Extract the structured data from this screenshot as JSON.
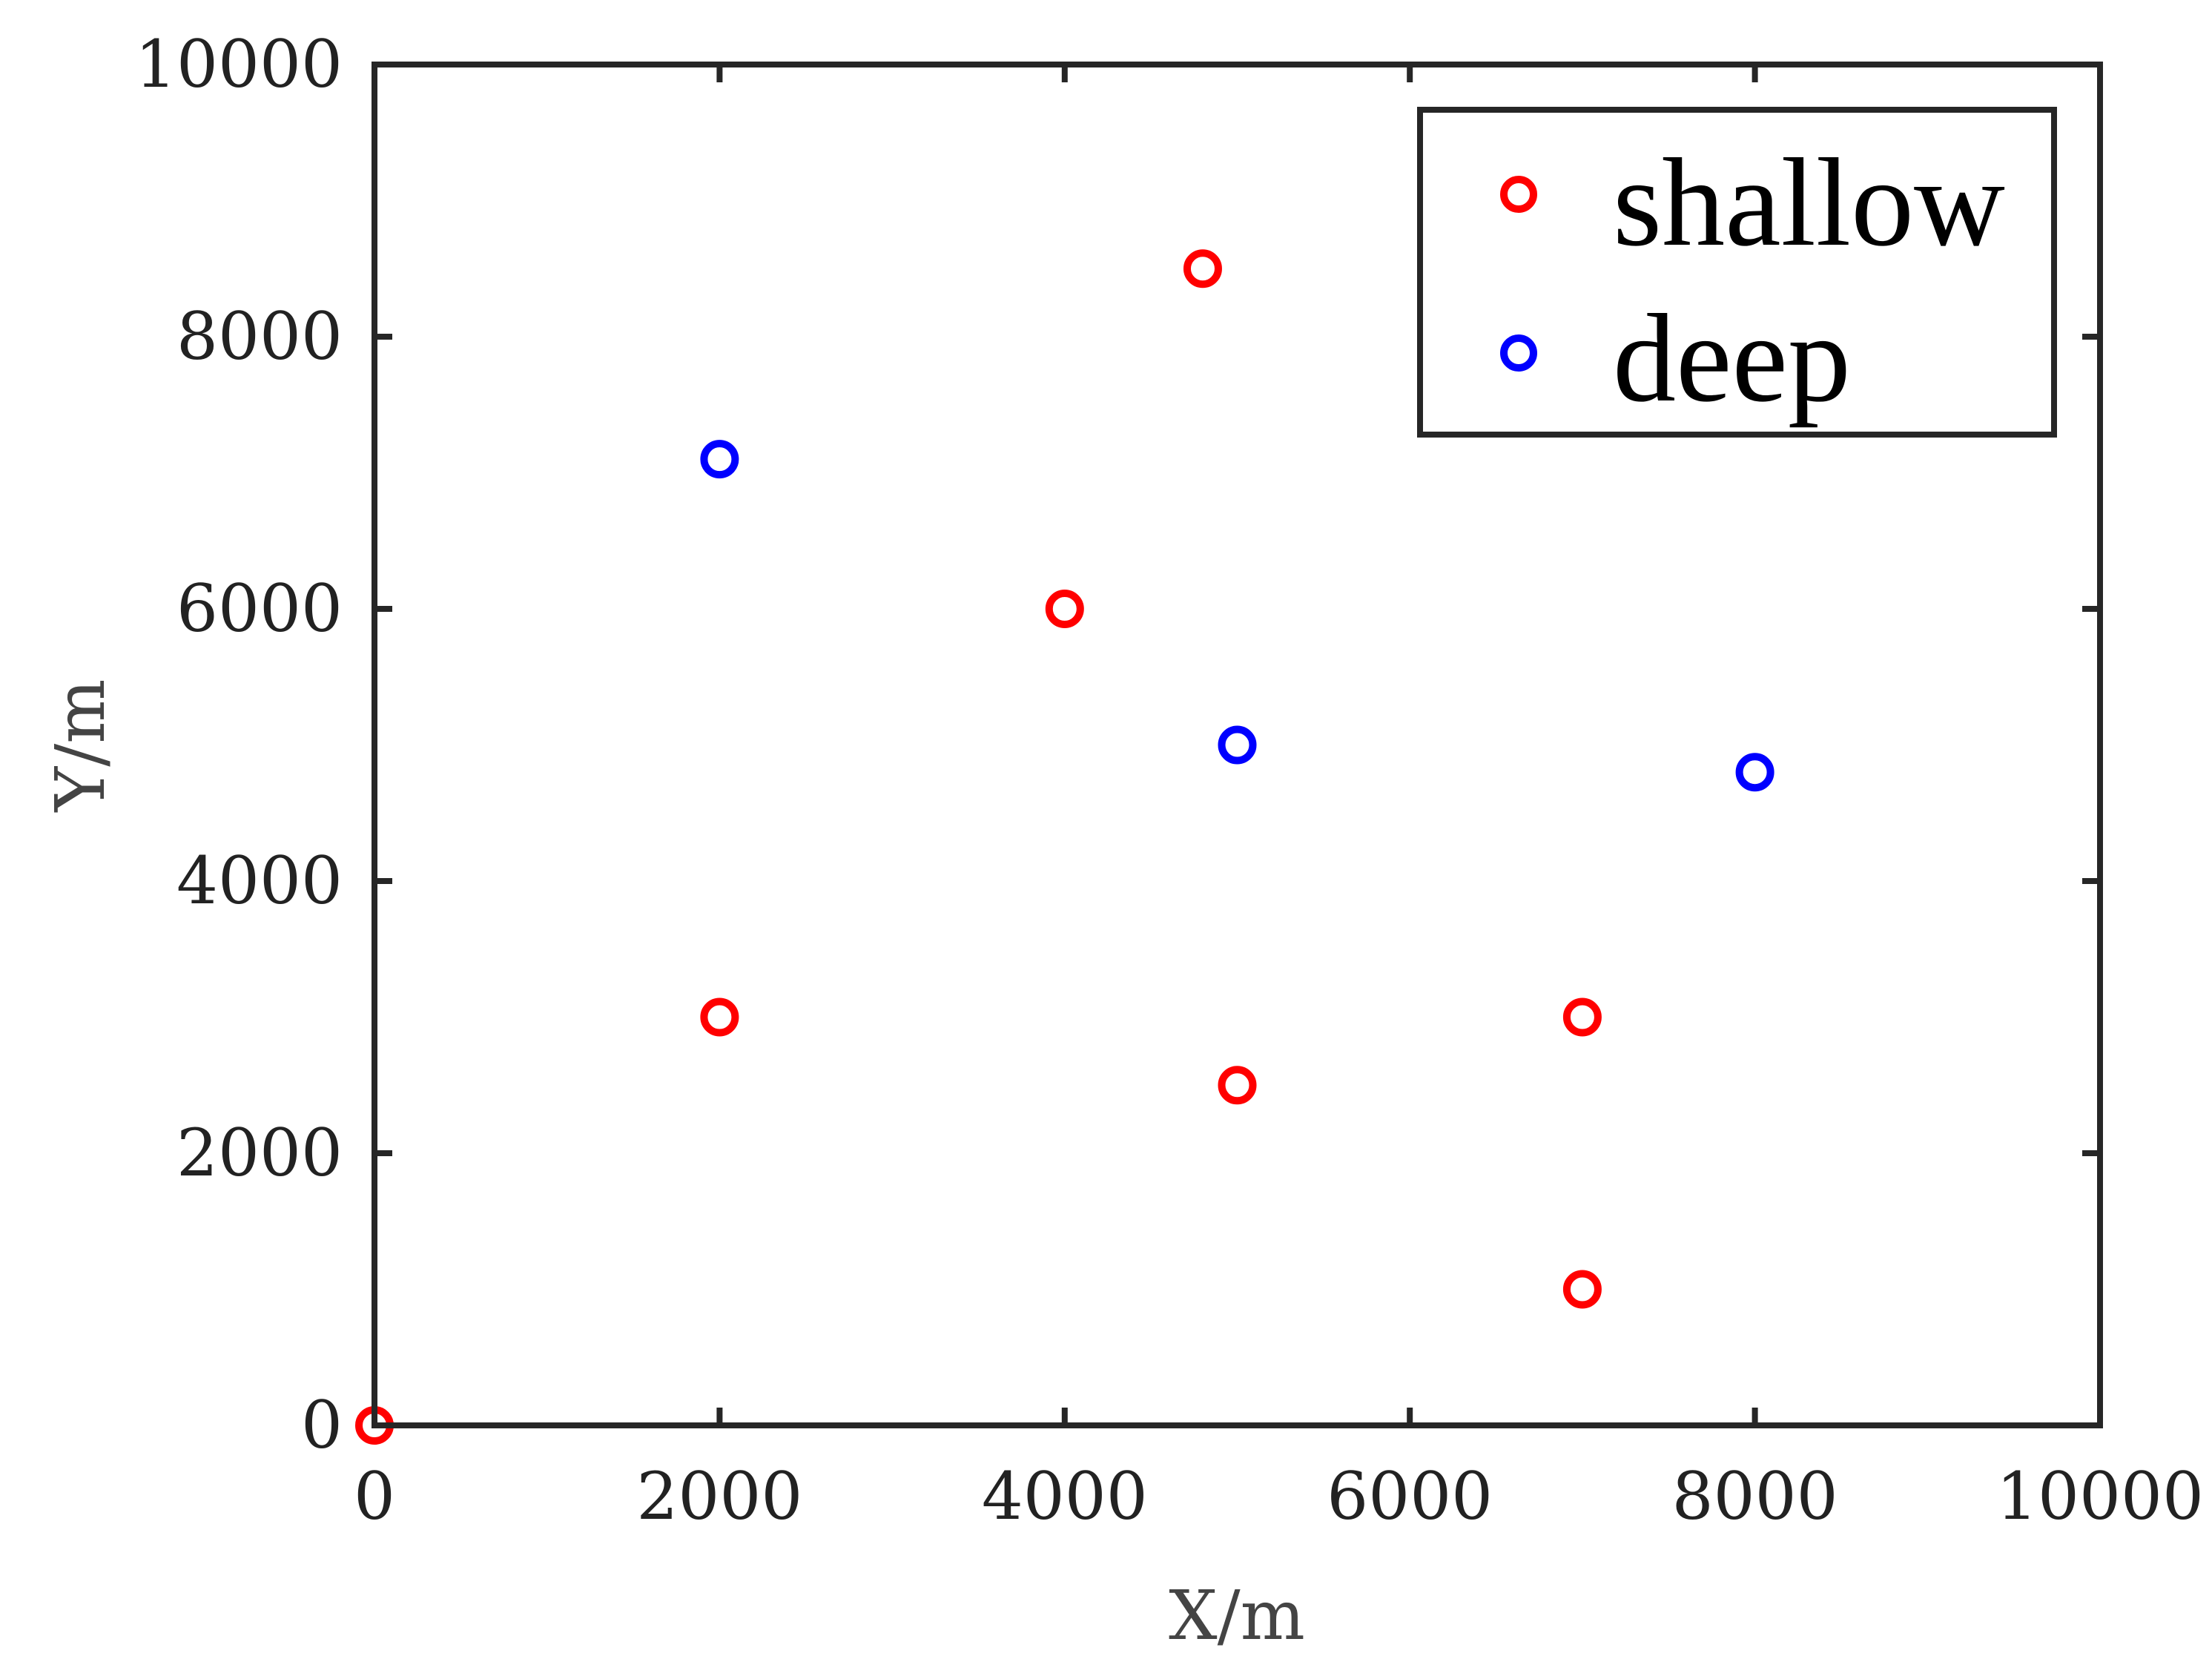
{
  "chart_data": {
    "type": "scatter",
    "title": "",
    "xlabel": "X/m",
    "ylabel": "Y/m",
    "xlim": [
      0,
      10000
    ],
    "ylim": [
      0,
      10000
    ],
    "xticks": [
      0,
      2000,
      4000,
      6000,
      8000,
      10000
    ],
    "yticks": [
      0,
      2000,
      4000,
      6000,
      8000,
      10000
    ],
    "xtick_labels": [
      "0",
      "2000",
      "4000",
      "6000",
      "8000",
      "10000"
    ],
    "ytick_labels": [
      "0",
      "2000",
      "4000",
      "6000",
      "8000",
      "10000"
    ],
    "grid": false,
    "legend_position": "top-right",
    "series": [
      {
        "name": "shallow",
        "color": "#ff0000",
        "marker": "open-circle",
        "x": [
          0,
          2000,
          4000,
          4800,
          5000,
          7000,
          7000
        ],
        "y": [
          0,
          3000,
          6000,
          8500,
          2500,
          3000,
          1000
        ]
      },
      {
        "name": "deep",
        "color": "#0000ff",
        "marker": "open-circle",
        "x": [
          2000,
          5000,
          8000
        ],
        "y": [
          7100,
          5000,
          4800
        ]
      }
    ]
  }
}
